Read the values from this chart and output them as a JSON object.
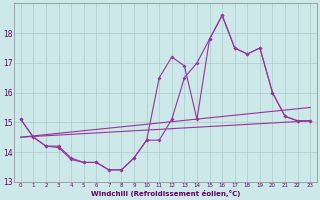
{
  "xlabel": "Windchill (Refroidissement éolien,°C)",
  "background_color": "#cce8e8",
  "grid_color": "#aacccc",
  "line_color": "#993399",
  "x": [
    0,
    1,
    2,
    3,
    4,
    5,
    6,
    7,
    8,
    9,
    10,
    11,
    12,
    13,
    14,
    15,
    16,
    17,
    18,
    19,
    20,
    21,
    22,
    23
  ],
  "line1": [
    15.1,
    14.5,
    14.2,
    14.2,
    13.8,
    13.65,
    13.65,
    13.4,
    13.4,
    13.8,
    14.4,
    16.5,
    17.2,
    16.9,
    15.1,
    17.8,
    18.6,
    17.5,
    17.3,
    17.5,
    16.0,
    15.2,
    15.05,
    15.05
  ],
  "line2": [
    15.1,
    14.5,
    14.2,
    14.15,
    13.75,
    13.65,
    13.65,
    13.4,
    13.4,
    13.8,
    14.4,
    14.4,
    15.1,
    16.5,
    17.0,
    17.8,
    18.6,
    17.5,
    17.3,
    17.5,
    16.0,
    15.2,
    15.05,
    15.05
  ],
  "line3_start": 14.5,
  "line3_end": 15.05,
  "line4_start": 14.5,
  "line4_end": 15.5,
  "ylim": [
    13.0,
    19.0
  ],
  "yticks": [
    13,
    14,
    15,
    16,
    17,
    18
  ],
  "xticks": [
    0,
    1,
    2,
    3,
    4,
    5,
    6,
    7,
    8,
    9,
    10,
    11,
    12,
    13,
    14,
    15,
    16,
    17,
    18,
    19,
    20,
    21,
    22,
    23
  ]
}
